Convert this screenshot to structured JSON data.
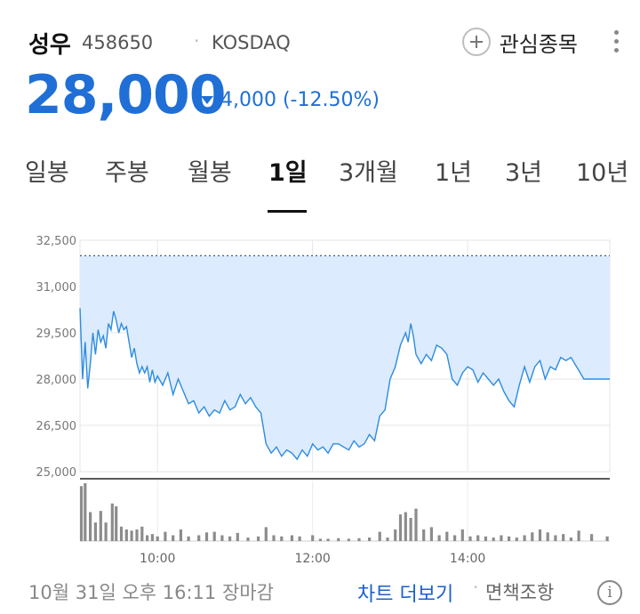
{
  "stock": {
    "name": "성우",
    "code": "458650",
    "market": "KOSDAQ",
    "price": "28,000",
    "change": "4,000 (-12.50%)",
    "direction": "down"
  },
  "header": {
    "watch_label": "관심종목"
  },
  "tabs": [
    {
      "label": "일봉",
      "active": false
    },
    {
      "label": "주봉",
      "active": false
    },
    {
      "label": "월봉",
      "active": false
    },
    {
      "label": "1일",
      "active": true
    },
    {
      "label": "3개월",
      "active": false
    },
    {
      "label": "1년",
      "active": false
    },
    {
      "label": "3년",
      "active": false
    },
    {
      "label": "10년",
      "active": false
    }
  ],
  "footer": {
    "timestamp": "10월 31일 오후 16:11 장마감",
    "more_chart": "차트 더보기",
    "disclaimer": "면책조항"
  },
  "colors": {
    "up": "#e0303a",
    "down": "#1f6fd6",
    "line": "#2d8ce0",
    "fill": "#dcebfd"
  },
  "chart_data": {
    "type": "area",
    "ylim": [
      25000,
      32500
    ],
    "yticks": [
      25000,
      26500,
      28000,
      29500,
      31000,
      32500
    ],
    "ytick_labels": [
      "25,000",
      "26,500",
      "28,000",
      "29,500",
      "31,000",
      "32,500"
    ],
    "baseline": 32000,
    "xlim": [
      "09:00",
      "15:50"
    ],
    "xticks": [
      "10:00",
      "12:00",
      "14:00"
    ],
    "price_series": [
      [
        "09:00",
        30300
      ],
      [
        "09:02",
        28000
      ],
      [
        "09:04",
        29200
      ],
      [
        "09:06",
        27700
      ],
      [
        "09:08",
        28500
      ],
      [
        "09:10",
        29500
      ],
      [
        "09:12",
        28800
      ],
      [
        "09:14",
        29600
      ],
      [
        "09:16",
        29200
      ],
      [
        "09:18",
        29400
      ],
      [
        "09:20",
        29000
      ],
      [
        "09:22",
        29800
      ],
      [
        "09:24",
        29600
      ],
      [
        "09:26",
        30200
      ],
      [
        "09:28",
        29900
      ],
      [
        "09:30",
        29500
      ],
      [
        "09:32",
        29800
      ],
      [
        "09:34",
        29600
      ],
      [
        "09:36",
        29700
      ],
      [
        "09:38",
        29200
      ],
      [
        "09:40",
        28700
      ],
      [
        "09:42",
        29000
      ],
      [
        "09:44",
        28500
      ],
      [
        "09:46",
        28200
      ],
      [
        "09:48",
        28400
      ],
      [
        "09:50",
        28200
      ],
      [
        "09:52",
        28400
      ],
      [
        "09:54",
        27900
      ],
      [
        "09:56",
        28300
      ],
      [
        "09:58",
        27900
      ],
      [
        "10:00",
        28100
      ],
      [
        "10:04",
        27800
      ],
      [
        "10:08",
        28200
      ],
      [
        "10:12",
        27500
      ],
      [
        "10:16",
        28000
      ],
      [
        "10:20",
        27600
      ],
      [
        "10:24",
        27200
      ],
      [
        "10:28",
        27300
      ],
      [
        "10:32",
        26900
      ],
      [
        "10:36",
        27100
      ],
      [
        "10:40",
        26800
      ],
      [
        "10:44",
        27000
      ],
      [
        "10:48",
        26900
      ],
      [
        "10:52",
        27300
      ],
      [
        "10:56",
        27000
      ],
      [
        "11:00",
        27100
      ],
      [
        "11:04",
        27500
      ],
      [
        "11:08",
        27200
      ],
      [
        "11:12",
        27400
      ],
      [
        "11:16",
        27100
      ],
      [
        "11:20",
        26900
      ],
      [
        "11:24",
        25900
      ],
      [
        "11:28",
        25600
      ],
      [
        "11:32",
        25800
      ],
      [
        "11:36",
        25500
      ],
      [
        "11:40",
        25700
      ],
      [
        "11:44",
        25600
      ],
      [
        "11:48",
        25400
      ],
      [
        "11:52",
        25700
      ],
      [
        "11:56",
        25500
      ],
      [
        "12:00",
        25900
      ],
      [
        "12:04",
        25700
      ],
      [
        "12:08",
        25800
      ],
      [
        "12:12",
        25600
      ],
      [
        "12:16",
        25900
      ],
      [
        "12:20",
        25900
      ],
      [
        "12:24",
        25800
      ],
      [
        "12:28",
        25700
      ],
      [
        "12:32",
        26000
      ],
      [
        "12:36",
        25800
      ],
      [
        "12:40",
        25900
      ],
      [
        "12:44",
        26200
      ],
      [
        "12:48",
        26000
      ],
      [
        "12:52",
        26800
      ],
      [
        "12:56",
        27000
      ],
      [
        "13:00",
        28000
      ],
      [
        "13:04",
        28400
      ],
      [
        "13:08",
        29100
      ],
      [
        "13:12",
        29500
      ],
      [
        "13:14",
        29200
      ],
      [
        "13:16",
        29800
      ],
      [
        "13:18",
        29400
      ],
      [
        "13:20",
        28800
      ],
      [
        "13:24",
        28500
      ],
      [
        "13:28",
        28800
      ],
      [
        "13:32",
        28600
      ],
      [
        "13:36",
        29100
      ],
      [
        "13:40",
        29000
      ],
      [
        "13:44",
        28800
      ],
      [
        "13:48",
        28000
      ],
      [
        "13:52",
        27800
      ],
      [
        "13:56",
        28200
      ],
      [
        "14:00",
        28400
      ],
      [
        "14:04",
        28300
      ],
      [
        "14:08",
        27900
      ],
      [
        "14:12",
        28200
      ],
      [
        "14:16",
        28000
      ],
      [
        "14:20",
        27800
      ],
      [
        "14:24",
        28000
      ],
      [
        "14:28",
        27600
      ],
      [
        "14:32",
        27300
      ],
      [
        "14:36",
        27100
      ],
      [
        "14:40",
        27800
      ],
      [
        "14:44",
        28400
      ],
      [
        "14:48",
        27900
      ],
      [
        "14:52",
        28400
      ],
      [
        "14:56",
        28600
      ],
      [
        "15:00",
        28000
      ],
      [
        "15:04",
        28400
      ],
      [
        "15:08",
        28300
      ],
      [
        "15:12",
        28700
      ],
      [
        "15:16",
        28600
      ],
      [
        "15:20",
        28700
      ],
      [
        "15:30",
        28000
      ],
      [
        "15:50",
        28000
      ]
    ],
    "volume_series": [
      [
        "09:01",
        95
      ],
      [
        "09:04",
        100
      ],
      [
        "09:08",
        50
      ],
      [
        "09:12",
        32
      ],
      [
        "09:16",
        52
      ],
      [
        "09:20",
        32
      ],
      [
        "09:25",
        65
      ],
      [
        "09:28",
        60
      ],
      [
        "09:32",
        25
      ],
      [
        "09:36",
        20
      ],
      [
        "09:40",
        18
      ],
      [
        "09:44",
        20
      ],
      [
        "09:48",
        25
      ],
      [
        "09:52",
        10
      ],
      [
        "09:56",
        12
      ],
      [
        "10:00",
        8
      ],
      [
        "10:06",
        16
      ],
      [
        "10:12",
        10
      ],
      [
        "10:18",
        20
      ],
      [
        "10:24",
        8
      ],
      [
        "10:32",
        10
      ],
      [
        "10:38",
        15
      ],
      [
        "10:44",
        16
      ],
      [
        "10:50",
        10
      ],
      [
        "10:56",
        8
      ],
      [
        "11:02",
        14
      ],
      [
        "11:10",
        6
      ],
      [
        "11:18",
        8
      ],
      [
        "11:24",
        24
      ],
      [
        "11:30",
        10
      ],
      [
        "11:36",
        8
      ],
      [
        "11:44",
        10
      ],
      [
        "11:50",
        8
      ],
      [
        "12:00",
        10
      ],
      [
        "12:06",
        4
      ],
      [
        "12:12",
        4
      ],
      [
        "12:20",
        5
      ],
      [
        "12:28",
        4
      ],
      [
        "12:36",
        5
      ],
      [
        "12:44",
        6
      ],
      [
        "12:52",
        16
      ],
      [
        "12:58",
        6
      ],
      [
        "13:04",
        20
      ],
      [
        "13:08",
        46
      ],
      [
        "13:12",
        50
      ],
      [
        "13:16",
        40
      ],
      [
        "13:20",
        56
      ],
      [
        "13:26",
        20
      ],
      [
        "13:32",
        24
      ],
      [
        "13:38",
        10
      ],
      [
        "13:44",
        16
      ],
      [
        "13:50",
        10
      ],
      [
        "13:56",
        20
      ],
      [
        "14:02",
        8
      ],
      [
        "14:08",
        10
      ],
      [
        "14:14",
        8
      ],
      [
        "14:20",
        6
      ],
      [
        "14:26",
        10
      ],
      [
        "14:32",
        8
      ],
      [
        "14:38",
        6
      ],
      [
        "14:44",
        10
      ],
      [
        "14:50",
        15
      ],
      [
        "14:56",
        20
      ],
      [
        "15:02",
        15
      ],
      [
        "15:08",
        10
      ],
      [
        "15:14",
        12
      ],
      [
        "15:20",
        6
      ],
      [
        "15:26",
        18
      ],
      [
        "15:36",
        12
      ],
      [
        "15:48",
        8
      ]
    ]
  }
}
